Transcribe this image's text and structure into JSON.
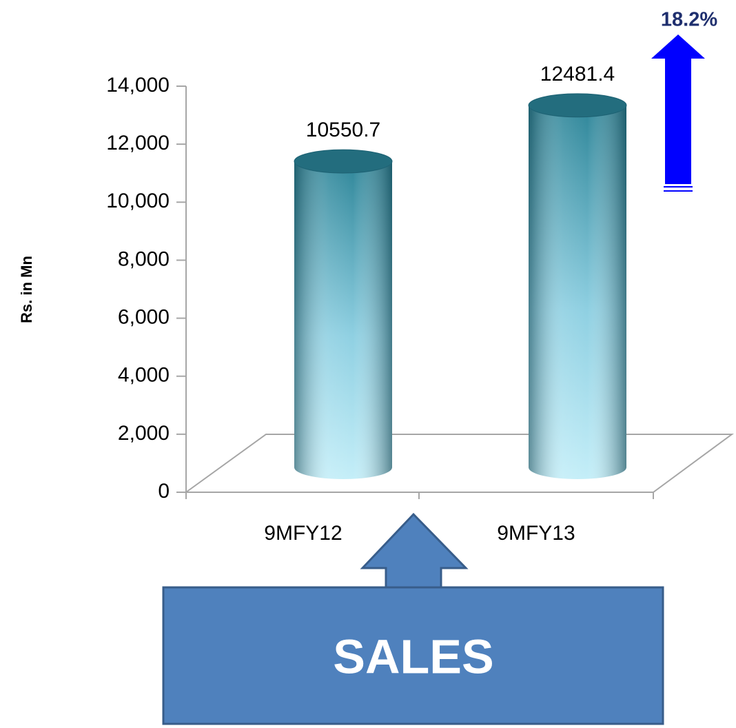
{
  "chart_data": {
    "type": "bar",
    "categories": [
      "9MFY12",
      "9MFY13"
    ],
    "values": [
      10550.7,
      12481.4
    ],
    "y_axis_label": "Rs. in Mn",
    "ylim": [
      0,
      14000
    ],
    "yticks": [
      0,
      {
        "value": 2000,
        "label": "2,000"
      },
      {
        "value": 4000,
        "label": "4,000"
      },
      {
        "value": 6000,
        "label": "6,000"
      },
      {
        "value": 8000,
        "label": "8,000"
      },
      {
        "value": 10000,
        "label": "10,000"
      },
      {
        "value": 12000,
        "label": "12,000"
      },
      {
        "value": 14000,
        "label": "14,000"
      }
    ],
    "growth_annotation": "18.2%",
    "callout": "SALES",
    "color": "#2f8699"
  }
}
